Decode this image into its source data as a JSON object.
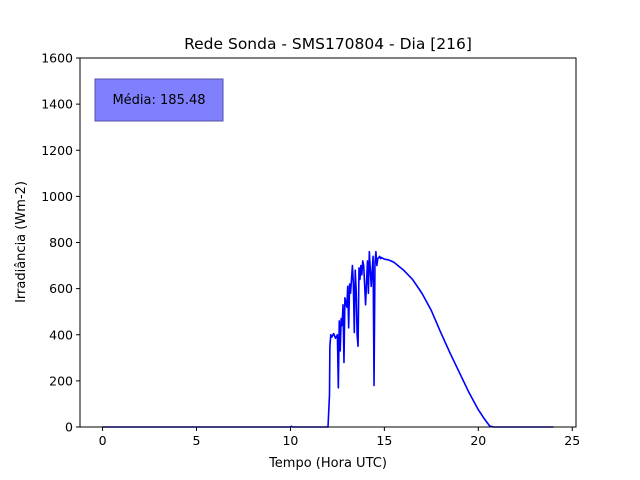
{
  "chart_data": {
    "type": "line",
    "title": "Rede Sonda - SMS170804 - Dia [216]",
    "xlabel": "Tempo (Hora UTC)",
    "ylabel": "Irradiância (Wm-2)",
    "xlim": [
      -1.2,
      25.2
    ],
    "ylim": [
      0,
      1600
    ],
    "xticks": [
      0,
      5,
      10,
      15,
      20,
      25
    ],
    "yticks": [
      0,
      200,
      400,
      600,
      800,
      1000,
      1200,
      1400,
      1600
    ],
    "grid": false,
    "annotation": "Média: 185.48",
    "colors": {
      "line": "#0000ff",
      "annotation_box": "#8080ff",
      "annotation_border": "#5050a0"
    },
    "series": [
      {
        "x": [
          0,
          5,
          10,
          10.05,
          10.1,
          12.0,
          12.08,
          12.1,
          12.15,
          12.2,
          12.3,
          12.4,
          12.5,
          12.55,
          12.6,
          12.65,
          12.7,
          12.75,
          12.8,
          12.85,
          12.9,
          13.0,
          13.05,
          13.1,
          13.15,
          13.2,
          13.3,
          13.35,
          13.4,
          13.45,
          13.5,
          13.55,
          13.6,
          13.65,
          13.7,
          13.75,
          13.8,
          13.85,
          13.9,
          14.0,
          14.1,
          14.15,
          14.2,
          14.3,
          14.4,
          14.45,
          14.5,
          14.55,
          14.6,
          14.65,
          14.7,
          14.75,
          14.8,
          14.85,
          14.9,
          14.95,
          15.0,
          15.05,
          15.2,
          15.5,
          15.8,
          16.0,
          16.5,
          17.0,
          17.5,
          18.0,
          18.5,
          19.0,
          19.5,
          20.0,
          20.3,
          20.6,
          20.8,
          21.0,
          21.2,
          22.0,
          24.0
        ],
        "y": [
          0,
          0,
          0,
          3,
          0,
          0,
          140,
          350,
          400,
          390,
          405,
          385,
          400,
          170,
          460,
          330,
          470,
          440,
          530,
          280,
          560,
          520,
          610,
          430,
          620,
          580,
          700,
          620,
          410,
          680,
          590,
          400,
          350,
          690,
          640,
          700,
          660,
          720,
          700,
          530,
          720,
          580,
          760,
          610,
          740,
          180,
          710,
          760,
          700,
          730,
          735,
          740,
          730,
          735,
          732,
          730,
          728,
          727,
          725,
          715,
          695,
          682,
          640,
          580,
          505,
          410,
          320,
          235,
          150,
          75,
          38,
          5,
          0,
          0,
          0,
          0,
          0
        ]
      }
    ]
  }
}
